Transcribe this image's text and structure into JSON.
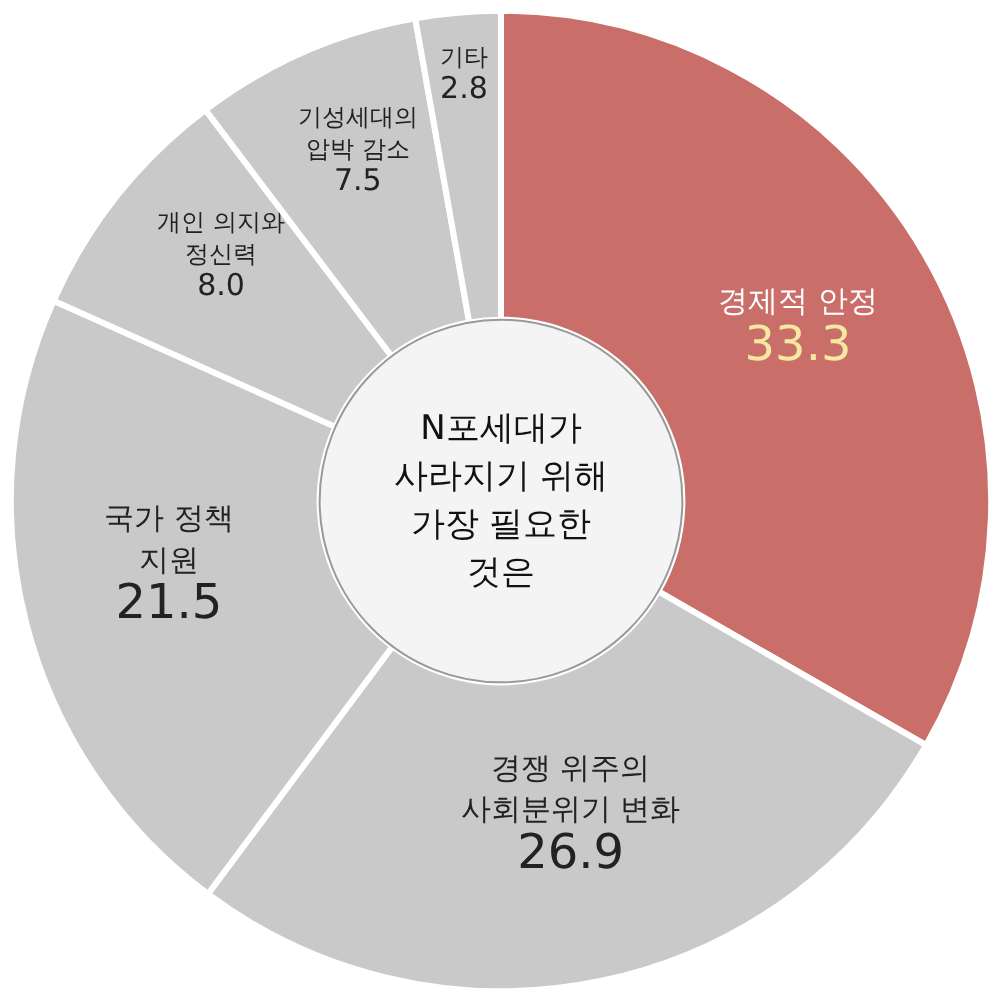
{
  "chart_data": {
    "type": "donut",
    "title": "N포세대가\n사라지기 위해\n가장 필요한\n것은",
    "categories": [
      "경제적 안정",
      "경쟁 위주의\n사회분위기 변화",
      "국가 정책\n지원",
      "개인 의지와\n정신력",
      "기성세대의\n압박 감소",
      "기타"
    ],
    "values": [
      33.3,
      26.9,
      21.5,
      8.0,
      7.5,
      2.8
    ],
    "colors": [
      "#c96e68",
      "#c9c9c9",
      "#c9c9c9",
      "#c9c9c9",
      "#c9c9c9",
      "#c9c9c9"
    ],
    "value_labels": [
      "33.3",
      "26.9",
      "21.5",
      "8.0",
      "7.5",
      "2.8"
    ]
  }
}
